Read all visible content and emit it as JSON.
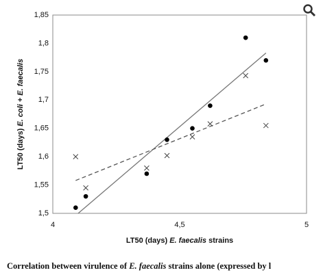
{
  "chart_data": {
    "type": "scatter",
    "x_label_parts": [
      "LT50 (days) ",
      "E. faecalis",
      " strains"
    ],
    "y_label_parts": [
      "LT50 (days)  ",
      "E. coli + E. faecalis"
    ],
    "caption_parts": [
      "Correlation between virulence of ",
      "E. faecalis",
      " strains alone (expressed by l"
    ],
    "xlim": [
      4,
      5
    ],
    "xticks": [
      4,
      {
        "value": 4.5,
        "label": "4,5"
      },
      5
    ],
    "ylim": [
      1.5,
      1.85
    ],
    "yticks": [
      {
        "value": 1.5,
        "label": "1,5"
      },
      {
        "value": 1.55,
        "label": "1,55"
      },
      {
        "value": 1.6,
        "label": "1,6"
      },
      {
        "value": 1.65,
        "label": "1,65"
      },
      {
        "value": 1.7,
        "label": "1,7"
      },
      {
        "value": 1.75,
        "label": "1,75"
      },
      {
        "value": 1.8,
        "label": "1,8"
      },
      {
        "value": 1.85,
        "label": "1,85"
      }
    ],
    "grid": true,
    "series": [
      {
        "marker": "dot",
        "color": "#000000",
        "x": [
          4.09,
          4.13,
          4.37,
          4.45,
          4.55,
          4.62,
          4.76,
          4.84
        ],
        "values": [
          1.51,
          1.53,
          1.57,
          1.63,
          1.65,
          1.69,
          1.81,
          1.77
        ]
      },
      {
        "marker": "cross",
        "color": "#444444",
        "x": [
          4.09,
          4.13,
          4.37,
          4.45,
          4.55,
          4.62,
          4.76,
          4.84
        ],
        "values": [
          1.6,
          1.545,
          1.58,
          1.602,
          1.635,
          1.658,
          1.743,
          1.655
        ]
      }
    ],
    "trend_lines": [
      {
        "dash": false,
        "color": "#777777",
        "x": [
          4.1,
          4.84
        ],
        "values": [
          1.5,
          1.783
        ]
      },
      {
        "dash": true,
        "color": "#555555",
        "x": [
          4.09,
          4.84
        ],
        "values": [
          1.558,
          1.693
        ]
      }
    ]
  }
}
